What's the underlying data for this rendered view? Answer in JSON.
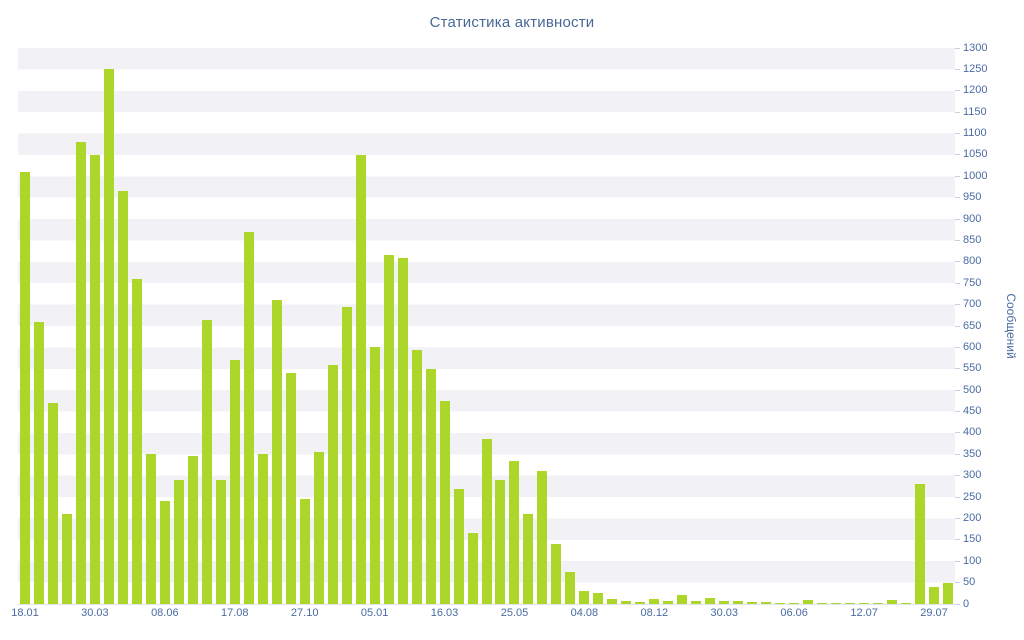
{
  "title": "Статистика активности",
  "colors": {
    "bar": "#acd62a",
    "title_text": "#4a6896",
    "axis_text": "#4a6ba3",
    "band": "#f2f2f6",
    "background": "#ffffff"
  },
  "y_axis": {
    "title": "Сообщений",
    "min": 0,
    "max": 1300,
    "step": 50
  },
  "x_axis": {
    "tick_labels": [
      "18.01",
      "30.03",
      "08.06",
      "17.08",
      "27.10",
      "05.01",
      "16.03",
      "25.05",
      "04.08",
      "08.12",
      "30.03",
      "06.06",
      "12.07",
      "29.07"
    ],
    "label_every_n_bars": 5
  },
  "chart_data": {
    "type": "bar",
    "title": "Статистика активности",
    "xlabel": "",
    "ylabel": "Сообщений",
    "ylim": [
      0,
      1300
    ],
    "y_tick_step": 50,
    "grid": "horizontal-bands",
    "legend": "none",
    "x_tick_labels": [
      "18.01",
      "30.03",
      "08.06",
      "17.08",
      "27.10",
      "05.01",
      "16.03",
      "25.05",
      "04.08",
      "08.12",
      "30.03",
      "06.06",
      "12.07",
      "29.07"
    ],
    "label_every_n_bars": 5,
    "values": [
      1010,
      660,
      470,
      210,
      1080,
      1050,
      1250,
      965,
      760,
      350,
      240,
      290,
      345,
      665,
      290,
      570,
      870,
      350,
      710,
      540,
      245,
      355,
      560,
      695,
      1050,
      600,
      815,
      810,
      595,
      550,
      475,
      270,
      165,
      385,
      290,
      335,
      210,
      310,
      140,
      75,
      30,
      25,
      12,
      8,
      5,
      12,
      8,
      20,
      8,
      15,
      6,
      8,
      5,
      4,
      3,
      3,
      10,
      3,
      2,
      3,
      2,
      2,
      10,
      2,
      280,
      40,
      50
    ]
  }
}
